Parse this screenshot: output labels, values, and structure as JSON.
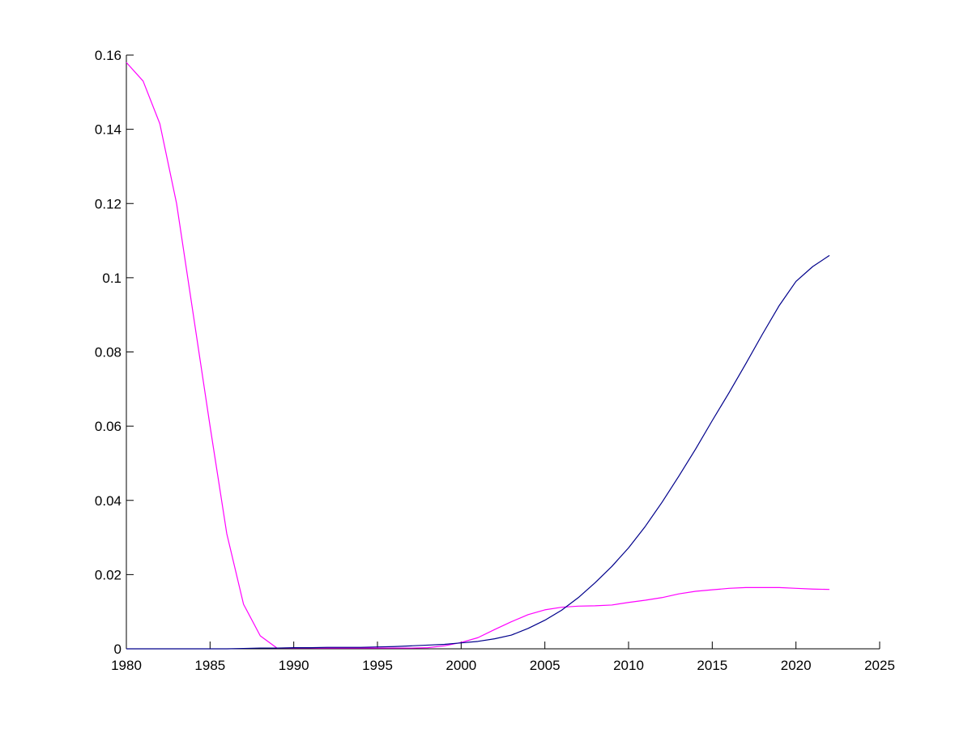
{
  "chart_data": {
    "type": "line",
    "title": "",
    "xlabel": "",
    "ylabel": "",
    "xlim": [
      1980,
      2025
    ],
    "ylim": [
      0,
      0.16
    ],
    "grid": false,
    "legend": "none",
    "x_ticks": [
      {
        "value": 1980,
        "label": "1980"
      },
      {
        "value": 1985,
        "label": "1985"
      },
      {
        "value": 1990,
        "label": "1990"
      },
      {
        "value": 1995,
        "label": "1995"
      },
      {
        "value": 2000,
        "label": "2000"
      },
      {
        "value": 2005,
        "label": "2005"
      },
      {
        "value": 2010,
        "label": "2010"
      },
      {
        "value": 2015,
        "label": "2015"
      },
      {
        "value": 2020,
        "label": "2020"
      },
      {
        "value": 2025,
        "label": "2025"
      }
    ],
    "y_ticks": [
      {
        "value": 0,
        "label": "0"
      },
      {
        "value": 0.02,
        "label": "0.02"
      },
      {
        "value": 0.04,
        "label": "0.04"
      },
      {
        "value": 0.06,
        "label": "0.06"
      },
      {
        "value": 0.08,
        "label": "0.08"
      },
      {
        "value": 0.1,
        "label": "0.1"
      },
      {
        "value": 0.12,
        "label": "0.12"
      },
      {
        "value": 0.14,
        "label": "0.14"
      },
      {
        "value": 0.16,
        "label": "0.16"
      }
    ],
    "series": [
      {
        "color": "#ff00ff",
        "x": [
          1980,
          1981,
          1982,
          1983,
          1984,
          1985,
          1986,
          1987,
          1988,
          1989,
          1990,
          1991,
          1992,
          1993,
          1994,
          1995,
          1996,
          1997,
          1998,
          1999,
          2000,
          2001,
          2002,
          2003,
          2004,
          2005,
          2006,
          2007,
          2008,
          2009,
          2010,
          2011,
          2012,
          2013,
          2014,
          2015,
          2016,
          2017,
          2018,
          2019,
          2020,
          2021,
          2022
        ],
        "y": [
          0.158,
          0.153,
          0.1415,
          0.12,
          0.09,
          0.06,
          0.031,
          0.012,
          0.0035,
          0.0002,
          0.0002,
          0.0002,
          0.0002,
          0.0002,
          0.0002,
          0.0002,
          0.0002,
          0.0002,
          0.0003,
          0.0008,
          0.0017,
          0.003,
          0.0052,
          0.0073,
          0.0092,
          0.0105,
          0.0112,
          0.0115,
          0.0116,
          0.0118,
          0.0125,
          0.0131,
          0.0138,
          0.0148,
          0.0155,
          0.0159,
          0.0163,
          0.0165,
          0.0165,
          0.0165,
          0.0163,
          0.0161,
          0.016
        ]
      },
      {
        "color": "#00008b",
        "x": [
          1980,
          1981,
          1982,
          1983,
          1984,
          1985,
          1986,
          1987,
          1988,
          1989,
          1990,
          1991,
          1992,
          1993,
          1994,
          1995,
          1996,
          1997,
          1998,
          1999,
          2000,
          2001,
          2002,
          2003,
          2004,
          2005,
          2006,
          2007,
          2008,
          2009,
          2010,
          2011,
          2012,
          2013,
          2014,
          2015,
          2016,
          2017,
          2018,
          2019,
          2020,
          2021,
          2022
        ],
        "y": [
          0.0,
          0.0,
          0.0,
          0.0,
          0.0,
          0.0,
          0.0,
          0.0001,
          0.0002,
          0.0002,
          0.0003,
          0.0003,
          0.0004,
          0.0004,
          0.0004,
          0.0005,
          0.0006,
          0.0008,
          0.001,
          0.0012,
          0.0016,
          0.002,
          0.0027,
          0.0037,
          0.0055,
          0.0077,
          0.0104,
          0.0138,
          0.0178,
          0.0222,
          0.0272,
          0.033,
          0.0395,
          0.0465,
          0.0538,
          0.0615,
          0.069,
          0.0768,
          0.0848,
          0.0925,
          0.099,
          0.103,
          0.106
        ]
      }
    ]
  }
}
